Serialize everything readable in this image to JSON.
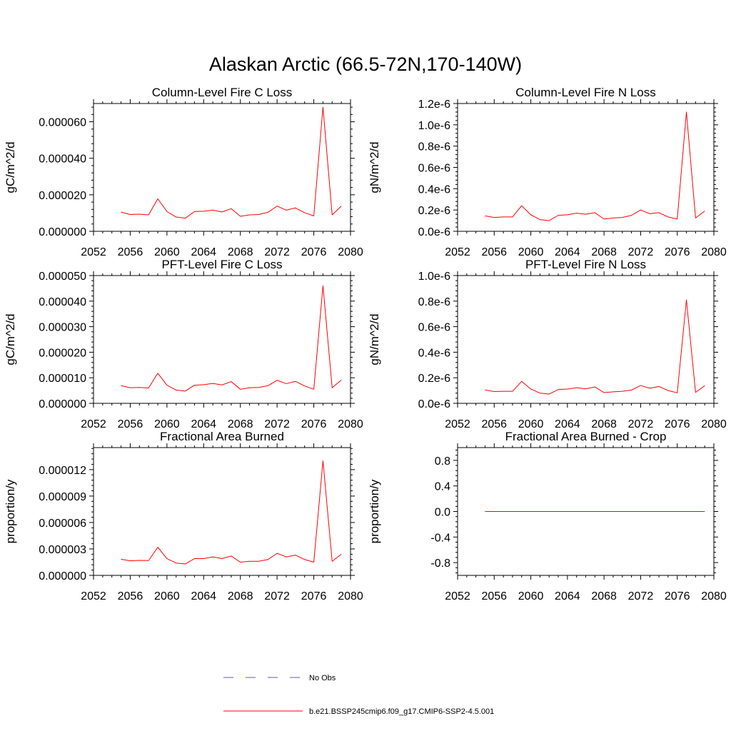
{
  "figure": {
    "title": "Alaskan Arctic (66.5-72N,170-140W)"
  },
  "legend": {
    "entries": [
      {
        "label": "No Obs",
        "color": "#5a5ad8",
        "dash": "dashed"
      },
      {
        "label": "b.e21.BSSP245cmip6.f09_g17.CMIP6-SSP2-4.5.001",
        "color": "#ff0000",
        "dash": "solid"
      }
    ]
  },
  "chart_data": [
    {
      "type": "line",
      "title": "Column-Level Fire C Loss",
      "ylabel": "gC/m^2/d",
      "xlim": [
        2052,
        2080
      ],
      "ylim": [
        0,
        7e-05
      ],
      "xticks": [
        2052,
        2056,
        2060,
        2064,
        2068,
        2072,
        2076,
        2080
      ],
      "xtick_labels": [
        "2052",
        "2056",
        "2060",
        "2064",
        "2068",
        "2072",
        "2076",
        "2080"
      ],
      "yticks": [
        0,
        2e-05,
        4e-05,
        6e-05
      ],
      "ytick_labels": [
        "0.000000",
        "0.000020",
        "0.000040",
        "0.000060"
      ],
      "x": [
        2055,
        2056,
        2057,
        2058,
        2059,
        2060,
        2061,
        2062,
        2063,
        2064,
        2065,
        2066,
        2067,
        2068,
        2069,
        2070,
        2071,
        2072,
        2073,
        2074,
        2075,
        2076,
        2077,
        2078,
        2079
      ],
      "series": [
        {
          "name": "b.e21.BSSP245cmip6.f09_g17.CMIP6-SSP2-4.5.001",
          "color": "#ff0000",
          "values": [
            1.05e-05,
            9.2e-06,
            9.4e-06,
            9e-06,
            1.78e-05,
            1.08e-05,
            7.8e-06,
            7.2e-06,
            1.08e-05,
            1.1e-05,
            1.16e-05,
            1.06e-05,
            1.24e-05,
            8.2e-06,
            9e-06,
            9.2e-06,
            1.04e-05,
            1.38e-05,
            1.16e-05,
            1.28e-05,
            1.02e-05,
            8.4e-06,
            6.8e-05,
            9e-06,
            1.38e-05
          ]
        }
      ]
    },
    {
      "type": "line",
      "title": "Column-Level Fire N Loss",
      "ylabel": "gN/m^2/d",
      "xlim": [
        2052,
        2080
      ],
      "ylim": [
        0,
        1.2e-06
      ],
      "xticks": [
        2052,
        2056,
        2060,
        2064,
        2068,
        2072,
        2076,
        2080
      ],
      "xtick_labels": [
        "2052",
        "2056",
        "2060",
        "2064",
        "2068",
        "2072",
        "2076",
        "2080"
      ],
      "yticks": [
        0,
        2e-07,
        4e-07,
        6e-07,
        8e-07,
        1e-06,
        1.2e-06
      ],
      "ytick_labels": [
        "0.0e-6",
        "0.2e-6",
        "0.4e-6",
        "0.6e-6",
        "0.8e-6",
        "1.0e-6",
        "1.2e-6"
      ],
      "x": [
        2055,
        2056,
        2057,
        2058,
        2059,
        2060,
        2061,
        2062,
        2063,
        2064,
        2065,
        2066,
        2067,
        2068,
        2069,
        2070,
        2071,
        2072,
        2073,
        2074,
        2075,
        2076,
        2077,
        2078,
        2079
      ],
      "series": [
        {
          "name": "b.e21.BSSP245cmip6.f09_g17.CMIP6-SSP2-4.5.001",
          "color": "#ff0000",
          "values": [
            1.45e-07,
            1.3e-07,
            1.35e-07,
            1.35e-07,
            2.4e-07,
            1.55e-07,
            1.1e-07,
            1e-07,
            1.5e-07,
            1.55e-07,
            1.7e-07,
            1.6e-07,
            1.75e-07,
            1.15e-07,
            1.25e-07,
            1.3e-07,
            1.5e-07,
            2e-07,
            1.65e-07,
            1.75e-07,
            1.35e-07,
            1.15e-07,
            1.12e-06,
            1.25e-07,
            1.9e-07
          ]
        }
      ]
    },
    {
      "type": "line",
      "title": "PFT-Level Fire C Loss",
      "ylabel": "gC/m^2/d",
      "xlim": [
        2052,
        2080
      ],
      "ylim": [
        0,
        5e-05
      ],
      "xticks": [
        2052,
        2056,
        2060,
        2064,
        2068,
        2072,
        2076,
        2080
      ],
      "xtick_labels": [
        "2052",
        "2056",
        "2060",
        "2064",
        "2068",
        "2072",
        "2076",
        "2080"
      ],
      "yticks": [
        0,
        1e-05,
        2e-05,
        3e-05,
        4e-05,
        5e-05
      ],
      "ytick_labels": [
        "0.000000",
        "0.000010",
        "0.000020",
        "0.000030",
        "0.000040",
        "0.000050"
      ],
      "x": [
        2055,
        2056,
        2057,
        2058,
        2059,
        2060,
        2061,
        2062,
        2063,
        2064,
        2065,
        2066,
        2067,
        2068,
        2069,
        2070,
        2071,
        2072,
        2073,
        2074,
        2075,
        2076,
        2077,
        2078,
        2079
      ],
      "series": [
        {
          "name": "b.e21.BSSP245cmip6.f09_g17.CMIP6-SSP2-4.5.001",
          "color": "#ff0000",
          "values": [
            6.9e-06,
            6.1e-06,
            6.2e-06,
            6e-06,
            1.18e-05,
            7.1e-06,
            5.2e-06,
            4.8e-06,
            7.1e-06,
            7.3e-06,
            7.8e-06,
            7.2e-06,
            8.5e-06,
            5.5e-06,
            6.1e-06,
            6.2e-06,
            6.9e-06,
            9e-06,
            7.7e-06,
            8.6e-06,
            6.8e-06,
            5.5e-06,
            4.6e-05,
            6.1e-06,
            9.1e-06
          ]
        }
      ]
    },
    {
      "type": "line",
      "title": "PFT-Level Fire N Loss",
      "ylabel": "gN/m^2/d",
      "xlim": [
        2052,
        2080
      ],
      "ylim": [
        0,
        1e-06
      ],
      "xticks": [
        2052,
        2056,
        2060,
        2064,
        2068,
        2072,
        2076,
        2080
      ],
      "xtick_labels": [
        "2052",
        "2056",
        "2060",
        "2064",
        "2068",
        "2072",
        "2076",
        "2080"
      ],
      "yticks": [
        0,
        2e-07,
        4e-07,
        6e-07,
        8e-07,
        1e-06
      ],
      "ytick_labels": [
        "0.0e-6",
        "0.2e-6",
        "0.4e-6",
        "0.6e-6",
        "0.8e-6",
        "1.0e-6"
      ],
      "x": [
        2055,
        2056,
        2057,
        2058,
        2059,
        2060,
        2061,
        2062,
        2063,
        2064,
        2065,
        2066,
        2067,
        2068,
        2069,
        2070,
        2071,
        2072,
        2073,
        2074,
        2075,
        2076,
        2077,
        2078,
        2079
      ],
      "series": [
        {
          "name": "b.e21.BSSP245cmip6.f09_g17.CMIP6-SSP2-4.5.001",
          "color": "#ff0000",
          "values": [
            1.05e-07,
            9.2e-08,
            9.4e-08,
            9.4e-08,
            1.72e-07,
            1.12e-07,
            8e-08,
            7.2e-08,
            1.08e-07,
            1.12e-07,
            1.22e-07,
            1.14e-07,
            1.28e-07,
            8.4e-08,
            9e-08,
            9.4e-08,
            1.04e-07,
            1.4e-07,
            1.18e-07,
            1.32e-07,
            1e-07,
            8.2e-08,
            8.1e-07,
            8.6e-08,
            1.38e-07
          ]
        }
      ]
    },
    {
      "type": "line",
      "title": "Fractional Area Burned",
      "ylabel": "proportion/y",
      "xlim": [
        2052,
        2080
      ],
      "ylim": [
        0,
        1.45e-05
      ],
      "xticks": [
        2052,
        2056,
        2060,
        2064,
        2068,
        2072,
        2076,
        2080
      ],
      "xtick_labels": [
        "2052",
        "2056",
        "2060",
        "2064",
        "2068",
        "2072",
        "2076",
        "2080"
      ],
      "yticks": [
        0,
        3e-06,
        6e-06,
        9e-06,
        1.2e-05
      ],
      "ytick_labels": [
        "0.000000",
        "0.000003",
        "0.000006",
        "0.000009",
        "0.000012"
      ],
      "x": [
        2055,
        2056,
        2057,
        2058,
        2059,
        2060,
        2061,
        2062,
        2063,
        2064,
        2065,
        2066,
        2067,
        2068,
        2069,
        2070,
        2071,
        2072,
        2073,
        2074,
        2075,
        2076,
        2077,
        2078,
        2079
      ],
      "series": [
        {
          "name": "b.e21.BSSP245cmip6.f09_g17.CMIP6-SSP2-4.5.001",
          "color": "#ff0000",
          "values": [
            1.83e-06,
            1.65e-06,
            1.7e-06,
            1.68e-06,
            3.2e-06,
            1.9e-06,
            1.4e-06,
            1.3e-06,
            1.9e-06,
            1.9e-06,
            2.1e-06,
            1.9e-06,
            2.2e-06,
            1.5e-06,
            1.6e-06,
            1.6e-06,
            1.8e-06,
            2.5e-06,
            2.1e-06,
            2.3e-06,
            1.8e-06,
            1.5e-06,
            1.3e-05,
            1.6e-06,
            2.4e-06
          ]
        }
      ]
    },
    {
      "type": "line",
      "title": "Fractional Area Burned - Crop",
      "ylabel": "proportion/y",
      "xlim": [
        2052,
        2080
      ],
      "ylim": [
        -1,
        1
      ],
      "xticks": [
        2052,
        2056,
        2060,
        2064,
        2068,
        2072,
        2076,
        2080
      ],
      "xtick_labels": [
        "2052",
        "2056",
        "2060",
        "2064",
        "2068",
        "2072",
        "2076",
        "2080"
      ],
      "yticks": [
        -0.8,
        -0.4,
        0,
        0.4,
        0.8
      ],
      "ytick_labels": [
        "-0.8",
        "-0.4",
        "0.0",
        "0.4",
        "0.8"
      ],
      "x": [
        2055,
        2056,
        2057,
        2058,
        2059,
        2060,
        2061,
        2062,
        2063,
        2064,
        2065,
        2066,
        2067,
        2068,
        2069,
        2070,
        2071,
        2072,
        2073,
        2074,
        2075,
        2076,
        2077,
        2078,
        2079
      ],
      "series": [
        {
          "name": "b.e21.BSSP245cmip6.f09_g17.CMIP6-SSP2-4.5.001",
          "color": "#ff0000",
          "values": [
            0,
            0,
            0,
            0,
            0,
            0,
            0,
            0,
            0,
            0,
            0,
            0,
            0,
            0,
            0,
            0,
            0,
            0,
            0,
            0,
            0,
            0,
            0,
            0,
            0
          ]
        }
      ]
    }
  ]
}
